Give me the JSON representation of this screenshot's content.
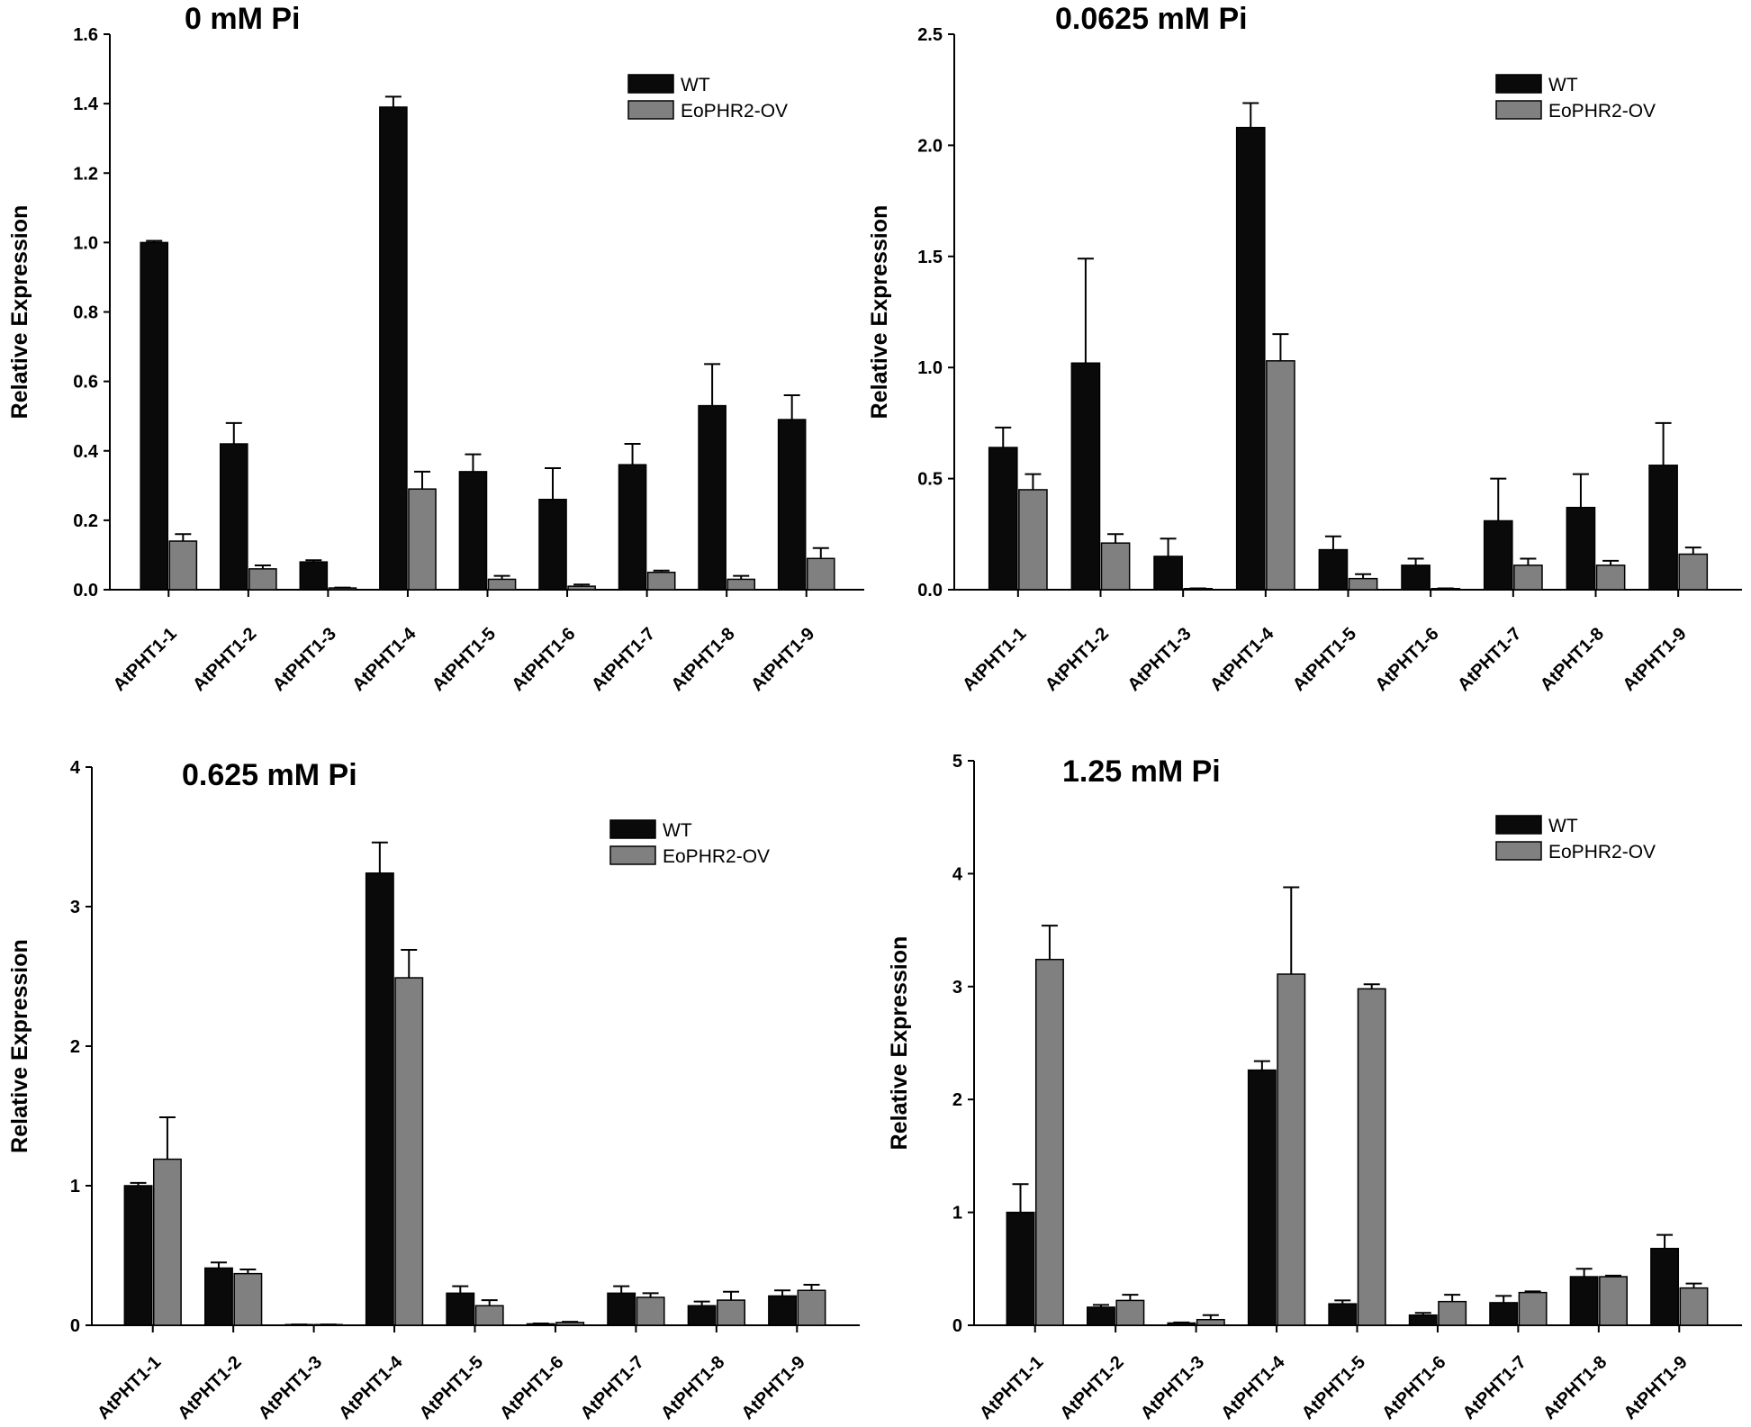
{
  "colors": {
    "WT": "#0a0a0a",
    "EoPHR2-OV": "#808080",
    "error_bar": "#000000",
    "axis": "#000000"
  },
  "chart_data": [
    {
      "type": "bar",
      "title": "0 mM Pi",
      "xlabel": "",
      "ylabel": "Relative Expression",
      "ylim": [
        0,
        1.6
      ],
      "yticks": [
        0,
        0.2,
        0.4,
        0.6,
        0.8,
        1.0,
        1.2,
        1.4,
        1.6
      ],
      "ytick_labels": [
        "0.0",
        "0.2",
        "0.4",
        "0.6",
        "0.8",
        "1.0",
        "1.2",
        "1.4",
        "1.6"
      ],
      "grid": false,
      "legend": "top-right",
      "categories": [
        "AtPHT1-1",
        "AtPHT1-2",
        "AtPHT1-3",
        "AtPHT1-4",
        "AtPHT1-5",
        "AtPHT1-6",
        "AtPHT1-7",
        "AtPHT1-8",
        "AtPHT1-9"
      ],
      "series": [
        {
          "name": "WT",
          "values": [
            1.0,
            0.42,
            0.08,
            1.39,
            0.34,
            0.26,
            0.36,
            0.53,
            0.49
          ],
          "errors": [
            0.005,
            0.06,
            0.005,
            0.03,
            0.05,
            0.09,
            0.06,
            0.12,
            0.07
          ]
        },
        {
          "name": "EoPHR2-OV",
          "values": [
            0.14,
            0.06,
            0.005,
            0.29,
            0.03,
            0.01,
            0.05,
            0.03,
            0.09
          ],
          "errors": [
            0.02,
            0.01,
            0.001,
            0.05,
            0.01,
            0.005,
            0.005,
            0.01,
            0.03
          ]
        }
      ]
    },
    {
      "type": "bar",
      "title": "0.0625 mM Pi",
      "xlabel": "",
      "ylabel": "Relative Expression",
      "ylim": [
        0,
        2.5
      ],
      "yticks": [
        0,
        0.5,
        1.0,
        1.5,
        2.0,
        2.5
      ],
      "ytick_labels": [
        "0.0",
        "0.5",
        "1.0",
        "1.5",
        "2.0",
        "2.5"
      ],
      "grid": false,
      "legend": "top-right",
      "categories": [
        "AtPHT1-1",
        "AtPHT1-2",
        "AtPHT1-3",
        "AtPHT1-4",
        "AtPHT1-5",
        "AtPHT1-6",
        "AtPHT1-7",
        "AtPHT1-8",
        "AtPHT1-9"
      ],
      "series": [
        {
          "name": "WT",
          "values": [
            0.64,
            1.02,
            0.15,
            2.08,
            0.18,
            0.11,
            0.31,
            0.37,
            0.56
          ],
          "errors": [
            0.09,
            0.47,
            0.08,
            0.11,
            0.06,
            0.03,
            0.19,
            0.15,
            0.19
          ]
        },
        {
          "name": "EoPHR2-OV",
          "values": [
            0.45,
            0.21,
            0.005,
            1.03,
            0.05,
            0.005,
            0.11,
            0.11,
            0.16
          ],
          "errors": [
            0.07,
            0.04,
            0.001,
            0.12,
            0.02,
            0.001,
            0.03,
            0.02,
            0.03
          ]
        }
      ]
    },
    {
      "type": "bar",
      "title": "0.625 mM Pi",
      "xlabel": "",
      "ylabel": "Relative Expression",
      "ylim": [
        0,
        4
      ],
      "yticks": [
        0,
        1,
        2,
        3,
        4
      ],
      "ytick_labels": [
        "0",
        "1",
        "2",
        "3",
        "4"
      ],
      "grid": false,
      "legend": "top-right",
      "categories": [
        "AtPHT1-1",
        "AtPHT1-2",
        "AtPHT1-3",
        "AtPHT1-4",
        "AtPHT1-5",
        "AtPHT1-6",
        "AtPHT1-7",
        "AtPHT1-8",
        "AtPHT1-9"
      ],
      "series": [
        {
          "name": "WT",
          "values": [
            1.0,
            0.41,
            0.005,
            3.24,
            0.23,
            0.01,
            0.23,
            0.14,
            0.21
          ],
          "errors": [
            0.02,
            0.04,
            0.001,
            0.22,
            0.05,
            0.003,
            0.05,
            0.03,
            0.04
          ]
        },
        {
          "name": "EoPHR2-OV",
          "values": [
            1.19,
            0.37,
            0.005,
            2.49,
            0.14,
            0.02,
            0.2,
            0.18,
            0.25
          ],
          "errors": [
            0.3,
            0.03,
            0.001,
            0.2,
            0.04,
            0.005,
            0.03,
            0.06,
            0.04
          ]
        }
      ]
    },
    {
      "type": "bar",
      "title": "1.25 mM Pi",
      "xlabel": "",
      "ylabel": "Relative Expression",
      "ylim": [
        0,
        5
      ],
      "yticks": [
        0,
        1,
        2,
        3,
        4,
        5
      ],
      "ytick_labels": [
        "0",
        "1",
        "2",
        "3",
        "4",
        "5"
      ],
      "grid": false,
      "legend": "top-right",
      "categories": [
        "AtPHT1-1",
        "AtPHT1-2",
        "AtPHT1-3",
        "AtPHT1-4",
        "AtPHT1-5",
        "AtPHT1-6",
        "AtPHT1-7",
        "AtPHT1-8",
        "AtPHT1-9"
      ],
      "series": [
        {
          "name": "WT",
          "values": [
            1.0,
            0.16,
            0.02,
            2.26,
            0.19,
            0.09,
            0.2,
            0.43,
            0.68
          ],
          "errors": [
            0.25,
            0.02,
            0.005,
            0.08,
            0.03,
            0.02,
            0.06,
            0.07,
            0.12
          ]
        },
        {
          "name": "EoPHR2-OV",
          "values": [
            3.24,
            0.22,
            0.05,
            3.11,
            2.98,
            0.21,
            0.29,
            0.43,
            0.33
          ],
          "errors": [
            0.3,
            0.05,
            0.04,
            0.77,
            0.04,
            0.06,
            0.01,
            0.01,
            0.04
          ]
        }
      ]
    }
  ]
}
